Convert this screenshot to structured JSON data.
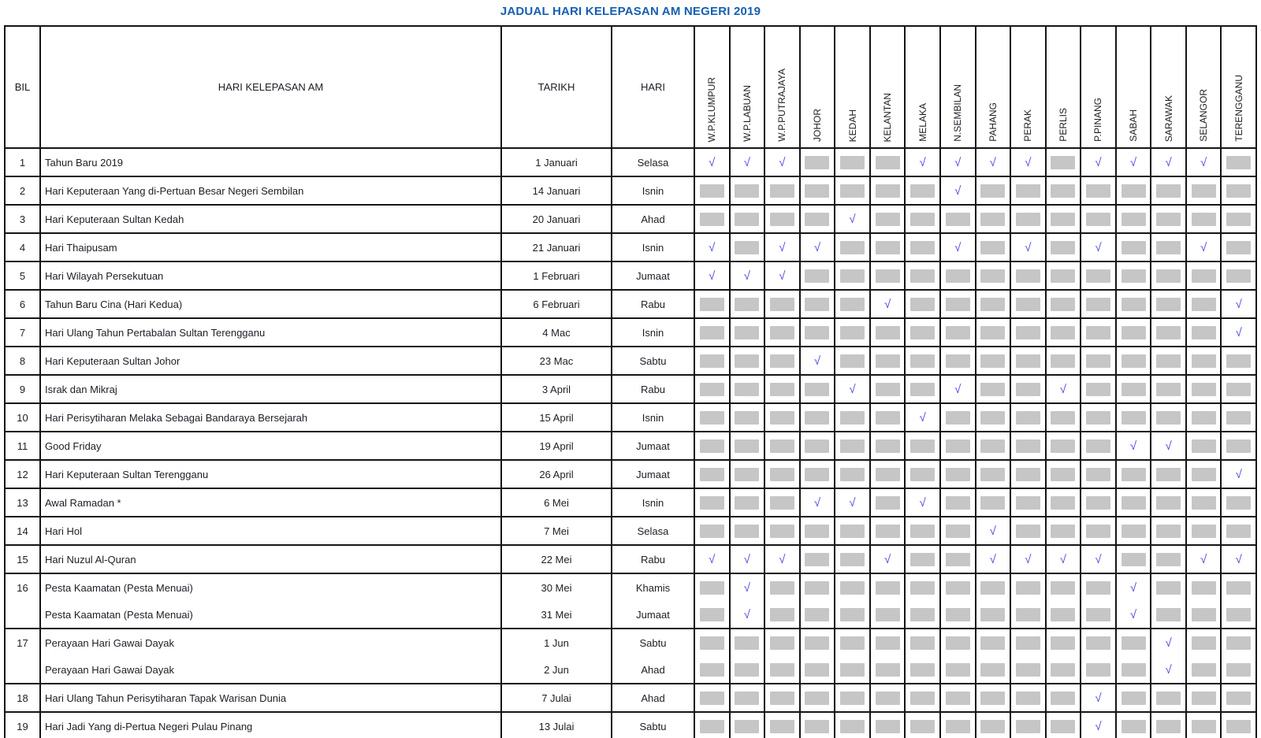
{
  "title": "JADUAL HARI KELEPASAN AM NEGERI 2019",
  "check_glyph": "√",
  "colors": {
    "title_blue": "#155fb0",
    "check_blue": "#4d4ae2",
    "empty_box_gray": "#c6c6c6",
    "border_black": "#151515"
  },
  "columns": {
    "bil": "BIL",
    "holiday": "HARI KELEPASAN AM",
    "date": "TARIKH",
    "day": "HARI"
  },
  "states": [
    "W.P.KLUMPUR",
    "W.P.LABUAN",
    "W.P.PUTRAJAYA",
    "JOHOR",
    "KEDAH",
    "KELANTAN",
    "MELAKA",
    "N.SEMBILAN",
    "PAHANG",
    "PERAK",
    "PERLIS",
    "P.PINANG",
    "SABAH",
    "SARAWAK",
    "SELANGOR",
    "TERENGGANU"
  ],
  "rows": [
    {
      "bil": "1",
      "lines": [
        {
          "holiday": "Tahun Baru 2019",
          "date": "1 Januari",
          "day": "Selasa"
        }
      ],
      "marks": [
        [
          1,
          1,
          1,
          0,
          0,
          0,
          1,
          1,
          1,
          1,
          0,
          1,
          1,
          1,
          1,
          0
        ]
      ]
    },
    {
      "bil": "2",
      "lines": [
        {
          "holiday": "Hari Keputeraan Yang di-Pertuan Besar Negeri Sembilan",
          "date": "14 Januari",
          "day": "Isnin"
        }
      ],
      "marks": [
        [
          0,
          0,
          0,
          0,
          0,
          0,
          0,
          1,
          0,
          0,
          0,
          0,
          0,
          0,
          0,
          0
        ]
      ]
    },
    {
      "bil": "3",
      "lines": [
        {
          "holiday": "Hari Keputeraan Sultan Kedah",
          "date": "20 Januari",
          "day": "Ahad"
        }
      ],
      "marks": [
        [
          0,
          0,
          0,
          0,
          1,
          0,
          0,
          0,
          0,
          0,
          0,
          0,
          0,
          0,
          0,
          0
        ]
      ]
    },
    {
      "bil": "4",
      "lines": [
        {
          "holiday": "Hari Thaipusam",
          "date": "21 Januari",
          "day": "Isnin"
        }
      ],
      "marks": [
        [
          1,
          0,
          1,
          1,
          0,
          0,
          0,
          1,
          0,
          1,
          0,
          1,
          0,
          0,
          1,
          0
        ]
      ]
    },
    {
      "bil": "5",
      "lines": [
        {
          "holiday": "Hari Wilayah Persekutuan",
          "date": "1 Februari",
          "day": "Jumaat"
        }
      ],
      "marks": [
        [
          1,
          1,
          1,
          0,
          0,
          0,
          0,
          0,
          0,
          0,
          0,
          0,
          0,
          0,
          0,
          0
        ]
      ]
    },
    {
      "bil": "6",
      "lines": [
        {
          "holiday": "Tahun Baru Cina (Hari Kedua)",
          "date": "6 Februari",
          "day": "Rabu"
        }
      ],
      "marks": [
        [
          0,
          0,
          0,
          0,
          0,
          1,
          0,
          0,
          0,
          0,
          0,
          0,
          0,
          0,
          0,
          1
        ]
      ]
    },
    {
      "bil": "7",
      "lines": [
        {
          "holiday": "Hari Ulang Tahun Pertabalan Sultan Terengganu",
          "date": "4 Mac",
          "day": "Isnin"
        }
      ],
      "marks": [
        [
          0,
          0,
          0,
          0,
          0,
          0,
          0,
          0,
          0,
          0,
          0,
          0,
          0,
          0,
          0,
          1
        ]
      ]
    },
    {
      "bil": "8",
      "lines": [
        {
          "holiday": "Hari Keputeraan Sultan Johor",
          "date": "23 Mac",
          "day": "Sabtu"
        }
      ],
      "marks": [
        [
          0,
          0,
          0,
          1,
          0,
          0,
          0,
          0,
          0,
          0,
          0,
          0,
          0,
          0,
          0,
          0
        ]
      ]
    },
    {
      "bil": "9",
      "lines": [
        {
          "holiday": "Israk dan Mikraj",
          "date": "3 April",
          "day": "Rabu"
        }
      ],
      "marks": [
        [
          0,
          0,
          0,
          0,
          1,
          0,
          0,
          1,
          0,
          0,
          1,
          0,
          0,
          0,
          0,
          0
        ]
      ]
    },
    {
      "bil": "10",
      "lines": [
        {
          "holiday": "Hari Perisytiharan Melaka Sebagai Bandaraya Bersejarah",
          "date": "15 April",
          "day": "Isnin"
        }
      ],
      "marks": [
        [
          0,
          0,
          0,
          0,
          0,
          0,
          1,
          0,
          0,
          0,
          0,
          0,
          0,
          0,
          0,
          0
        ]
      ]
    },
    {
      "bil": "11",
      "lines": [
        {
          "holiday": "Good Friday",
          "date": "19 April",
          "day": "Jumaat"
        }
      ],
      "marks": [
        [
          0,
          0,
          0,
          0,
          0,
          0,
          0,
          0,
          0,
          0,
          0,
          0,
          1,
          1,
          0,
          0
        ]
      ]
    },
    {
      "bil": "12",
      "lines": [
        {
          "holiday": "Hari Keputeraan Sultan Terengganu",
          "date": "26 April",
          "day": "Jumaat"
        }
      ],
      "marks": [
        [
          0,
          0,
          0,
          0,
          0,
          0,
          0,
          0,
          0,
          0,
          0,
          0,
          0,
          0,
          0,
          1
        ]
      ]
    },
    {
      "bil": "13",
      "lines": [
        {
          "holiday": "Awal Ramadan *",
          "date": "6 Mei",
          "day": "Isnin"
        }
      ],
      "marks": [
        [
          0,
          0,
          0,
          1,
          1,
          0,
          1,
          0,
          0,
          0,
          0,
          0,
          0,
          0,
          0,
          0
        ]
      ]
    },
    {
      "bil": "14",
      "lines": [
        {
          "holiday": "Hari Hol",
          "date": "7 Mei",
          "day": "Selasa"
        }
      ],
      "marks": [
        [
          0,
          0,
          0,
          0,
          0,
          0,
          0,
          0,
          1,
          0,
          0,
          0,
          0,
          0,
          0,
          0
        ]
      ]
    },
    {
      "bil": "15",
      "lines": [
        {
          "holiday": "Hari Nuzul Al-Quran",
          "date": "22 Mei",
          "day": "Rabu"
        }
      ],
      "marks": [
        [
          1,
          1,
          1,
          0,
          0,
          1,
          0,
          0,
          1,
          1,
          1,
          1,
          0,
          0,
          1,
          1
        ]
      ]
    },
    {
      "bil": "16",
      "lines": [
        {
          "holiday": "Pesta Kaamatan (Pesta Menuai)",
          "date": "30 Mei",
          "day": "Khamis"
        },
        {
          "holiday": "Pesta Kaamatan (Pesta Menuai)",
          "date": "31 Mei",
          "day": "Jumaat"
        }
      ],
      "marks": [
        [
          0,
          1,
          0,
          0,
          0,
          0,
          0,
          0,
          0,
          0,
          0,
          0,
          1,
          0,
          0,
          0
        ],
        [
          0,
          1,
          0,
          0,
          0,
          0,
          0,
          0,
          0,
          0,
          0,
          0,
          1,
          0,
          0,
          0
        ]
      ]
    },
    {
      "bil": "17",
      "lines": [
        {
          "holiday": "Perayaan Hari Gawai Dayak",
          "date": "1 Jun",
          "day": "Sabtu"
        },
        {
          "holiday": "Perayaan Hari Gawai Dayak",
          "date": "2 Jun",
          "day": "Ahad"
        }
      ],
      "marks": [
        [
          0,
          0,
          0,
          0,
          0,
          0,
          0,
          0,
          0,
          0,
          0,
          0,
          0,
          1,
          0,
          0
        ],
        [
          0,
          0,
          0,
          0,
          0,
          0,
          0,
          0,
          0,
          0,
          0,
          0,
          0,
          1,
          0,
          0
        ]
      ]
    },
    {
      "bil": "18",
      "lines": [
        {
          "holiday": "Hari Ulang Tahun Perisytiharan Tapak Warisan Dunia",
          "date": "7 Julai",
          "day": "Ahad"
        }
      ],
      "marks": [
        [
          0,
          0,
          0,
          0,
          0,
          0,
          0,
          0,
          0,
          0,
          0,
          1,
          0,
          0,
          0,
          0
        ]
      ]
    },
    {
      "bil": "19",
      "lines": [
        {
          "holiday": "Hari Jadi Yang di-Pertua Negeri Pulau Pinang",
          "date": "13 Julai",
          "day": "Sabtu"
        }
      ],
      "marks": [
        [
          0,
          0,
          0,
          0,
          0,
          0,
          0,
          0,
          0,
          0,
          0,
          1,
          0,
          0,
          0,
          0
        ]
      ]
    }
  ]
}
